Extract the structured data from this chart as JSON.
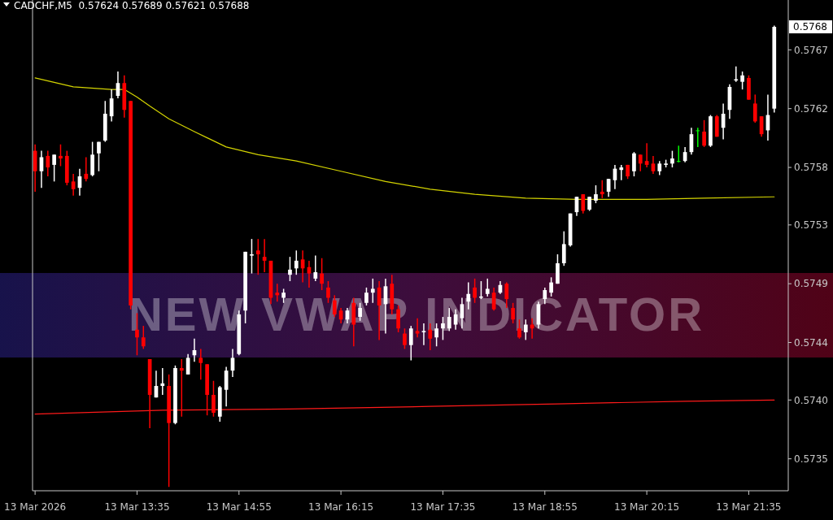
{
  "chart_data": {
    "type": "candlestick",
    "title": "CADCHF,M5  0.57624 0.57689 0.57621 0.57688",
    "x": [
      "2026-03-13T12:15",
      "2026-03-13T12:20",
      "2026-03-13T12:25",
      "2026-03-13T12:30",
      "2026-03-13T12:35",
      "2026-03-13T12:40",
      "2026-03-13T12:45",
      "2026-03-13T12:50",
      "2026-03-13T12:55",
      "2026-03-13T13:00",
      "2026-03-13T13:05",
      "2026-03-13T13:10",
      "2026-03-13T13:15",
      "2026-03-13T13:20",
      "2026-03-13T13:25",
      "2026-03-13T13:30",
      "2026-03-13T13:35",
      "2026-03-13T13:40",
      "2026-03-13T13:45",
      "2026-03-13T13:50",
      "2026-03-13T13:55",
      "2026-03-13T14:00",
      "2026-03-13T14:05",
      "2026-03-13T14:10",
      "2026-03-13T14:15",
      "2026-03-13T14:20",
      "2026-03-13T14:25",
      "2026-03-13T14:30",
      "2026-03-13T14:35",
      "2026-03-13T14:40",
      "2026-03-13T14:45",
      "2026-03-13T14:50",
      "2026-03-13T14:55",
      "2026-03-13T15:00",
      "2026-03-13T15:05",
      "2026-03-13T15:10",
      "2026-03-13T15:15",
      "2026-03-13T15:20",
      "2026-03-13T15:25",
      "2026-03-13T15:30",
      "2026-03-13T15:35",
      "2026-03-13T15:40",
      "2026-03-13T15:45",
      "2026-03-13T15:50",
      "2026-03-13T15:55",
      "2026-03-13T16:00",
      "2026-03-13T16:05",
      "2026-03-13T16:10",
      "2026-03-13T16:15",
      "2026-03-13T16:20",
      "2026-03-13T16:25",
      "2026-03-13T16:30",
      "2026-03-13T16:35",
      "2026-03-13T16:40",
      "2026-03-13T16:45",
      "2026-03-13T16:50",
      "2026-03-13T16:55",
      "2026-03-13T17:00",
      "2026-03-13T17:05",
      "2026-03-13T17:10",
      "2026-03-13T17:15",
      "2026-03-13T17:20",
      "2026-03-13T17:25",
      "2026-03-13T17:30",
      "2026-03-13T17:35",
      "2026-03-13T17:40",
      "2026-03-13T17:45",
      "2026-03-13T17:50",
      "2026-03-13T17:55",
      "2026-03-13T18:00",
      "2026-03-13T18:05",
      "2026-03-13T18:10",
      "2026-03-13T18:15",
      "2026-03-13T18:20",
      "2026-03-13T18:25",
      "2026-03-13T18:30",
      "2026-03-13T18:35",
      "2026-03-13T18:40",
      "2026-03-13T18:45",
      "2026-03-13T18:50",
      "2026-03-13T18:55",
      "2026-03-13T19:00",
      "2026-03-13T19:05",
      "2026-03-13T19:10",
      "2026-03-13T19:15",
      "2026-03-13T19:20",
      "2026-03-13T19:25",
      "2026-03-13T19:30",
      "2026-03-13T19:35",
      "2026-03-13T19:40",
      "2026-03-13T19:45",
      "2026-03-13T19:50",
      "2026-03-13T19:55",
      "2026-03-13T20:00",
      "2026-03-13T20:05",
      "2026-03-13T20:10",
      "2026-03-13T20:15",
      "2026-03-13T20:20",
      "2026-03-13T20:25",
      "2026-03-13T20:30",
      "2026-03-13T20:35",
      "2026-03-13T20:40",
      "2026-03-13T20:45",
      "2026-03-13T20:50",
      "2026-03-13T20:55",
      "2026-03-13T21:00",
      "2026-03-13T21:05",
      "2026-03-13T21:10",
      "2026-03-13T21:15",
      "2026-03-13T21:20",
      "2026-03-13T21:25",
      "2026-03-13T21:30",
      "2026-03-13T21:35",
      "2026-03-13T21:40",
      "2026-03-13T21:45",
      "2026-03-13T21:50",
      "2026-03-13T21:55"
    ],
    "ohlc": [
      [
        0.57591,
        0.57596,
        0.57559,
        0.57575
      ],
      [
        0.57575,
        0.57591,
        0.57562,
        0.57586
      ],
      [
        0.57587,
        0.57591,
        0.57571,
        0.57578
      ],
      [
        0.5758,
        0.57588,
        0.57567,
        0.57588
      ],
      [
        0.57587,
        0.57596,
        0.57579,
        0.57585
      ],
      [
        0.57587,
        0.57591,
        0.57564,
        0.57566
      ],
      [
        0.57567,
        0.57573,
        0.57556,
        0.57561
      ],
      [
        0.57562,
        0.57577,
        0.57556,
        0.57571
      ],
      [
        0.57573,
        0.57586,
        0.57567,
        0.57569
      ],
      [
        0.57572,
        0.57598,
        0.57571,
        0.57588
      ],
      [
        0.57589,
        0.57598,
        0.57575,
        0.57598
      ],
      [
        0.57599,
        0.5763,
        0.57598,
        0.5762
      ],
      [
        0.57618,
        0.57639,
        0.57614,
        0.57632
      ],
      [
        0.57634,
        0.57653,
        0.57632,
        0.57644
      ],
      [
        0.57644,
        0.5765,
        0.57617,
        0.57623
      ],
      [
        0.5763,
        0.5763,
        0.57467,
        0.5747
      ],
      [
        0.57451,
        0.57464,
        0.57431,
        0.57445
      ],
      [
        0.57445,
        0.57454,
        0.57436,
        0.57438
      ],
      [
        0.57428,
        0.57428,
        0.57374,
        0.574
      ],
      [
        0.57398,
        0.57419,
        0.57398,
        0.57407
      ],
      [
        0.57407,
        0.57421,
        0.574,
        0.57409
      ],
      [
        0.57407,
        0.57416,
        0.57328,
        0.57378
      ],
      [
        0.57378,
        0.57423,
        0.57377,
        0.57421
      ],
      [
        0.57421,
        0.57428,
        0.57383,
        0.57419
      ],
      [
        0.57416,
        0.57432,
        0.57416,
        0.57429
      ],
      [
        0.57431,
        0.57444,
        0.57426,
        0.57435
      ],
      [
        0.57429,
        0.57436,
        0.57412,
        0.57425
      ],
      [
        0.57424,
        0.57424,
        0.57384,
        0.574
      ],
      [
        0.574,
        0.57411,
        0.57383,
        0.57386
      ],
      [
        0.57383,
        0.57407,
        0.57379,
        0.57406
      ],
      [
        0.57404,
        0.57422,
        0.57391,
        0.57419
      ],
      [
        0.57419,
        0.57436,
        0.57414,
        0.57429
      ],
      [
        0.57432,
        0.57466,
        0.57431,
        0.57463
      ],
      [
        0.57466,
        0.57512,
        0.57456,
        0.57512
      ],
      [
        0.57509,
        0.57522,
        0.57495,
        0.5751
      ],
      [
        0.57513,
        0.57522,
        0.57494,
        0.5751
      ],
      [
        0.57508,
        0.57522,
        0.57496,
        0.57505
      ],
      [
        0.57505,
        0.57505,
        0.57471,
        0.57476
      ],
      [
        0.5748,
        0.57487,
        0.57473,
        0.57478
      ],
      [
        0.57476,
        0.57483,
        0.57472,
        0.5748
      ],
      [
        0.57494,
        0.57508,
        0.57489,
        0.57498
      ],
      [
        0.57499,
        0.57513,
        0.57494,
        0.57505
      ],
      [
        0.57506,
        0.57513,
        0.57488,
        0.57499
      ],
      [
        0.575,
        0.57505,
        0.57484,
        0.57495
      ],
      [
        0.57491,
        0.57509,
        0.57489,
        0.57496
      ],
      [
        0.57495,
        0.57507,
        0.57482,
        0.57487
      ],
      [
        0.57484,
        0.57489,
        0.57472,
        0.57476
      ],
      [
        0.57474,
        0.57478,
        0.57461,
        0.57463
      ],
      [
        0.57466,
        0.57468,
        0.57456,
        0.57459
      ],
      [
        0.57459,
        0.57468,
        0.57456,
        0.57466
      ],
      [
        0.57472,
        0.57476,
        0.57438,
        0.57455
      ],
      [
        0.57461,
        0.57472,
        0.57458,
        0.57468
      ],
      [
        0.57472,
        0.57484,
        0.5747,
        0.5748
      ],
      [
        0.5748,
        0.57491,
        0.57472,
        0.57483
      ],
      [
        0.57484,
        0.57489,
        0.57443,
        0.5747
      ],
      [
        0.57471,
        0.57491,
        0.57448,
        0.57485
      ],
      [
        0.57487,
        0.57494,
        0.57463,
        0.57467
      ],
      [
        0.57467,
        0.5747,
        0.57449,
        0.57452
      ],
      [
        0.57448,
        0.57452,
        0.57436,
        0.57439
      ],
      [
        0.57439,
        0.57454,
        0.57427,
        0.57452
      ],
      [
        0.5745,
        0.5746,
        0.57445,
        0.57448
      ],
      [
        0.57449,
        0.57456,
        0.57439,
        0.5745
      ],
      [
        0.57451,
        0.57456,
        0.57435,
        0.57444
      ],
      [
        0.57445,
        0.57456,
        0.57438,
        0.57452
      ],
      [
        0.57452,
        0.57461,
        0.57443,
        0.57456
      ],
      [
        0.57452,
        0.57468,
        0.5745,
        0.57461
      ],
      [
        0.57455,
        0.57467,
        0.57451,
        0.57463
      ],
      [
        0.5746,
        0.57476,
        0.57452,
        0.57471
      ],
      [
        0.57473,
        0.57488,
        0.57467,
        0.57479
      ],
      [
        0.57484,
        0.57491,
        0.57472,
        0.57476
      ],
      [
        0.57476,
        0.57489,
        0.57475,
        0.57477
      ],
      [
        0.57479,
        0.57491,
        0.57477,
        0.57483
      ],
      [
        0.5748,
        0.57484,
        0.57466,
        0.57467
      ],
      [
        0.5748,
        0.57489,
        0.57479,
        0.57486
      ],
      [
        0.57487,
        0.57488,
        0.57468,
        0.57475
      ],
      [
        0.57468,
        0.57472,
        0.57456,
        0.57459
      ],
      [
        0.57452,
        0.57459,
        0.57444,
        0.57445
      ],
      [
        0.57449,
        0.57459,
        0.57443,
        0.57455
      ],
      [
        0.57455,
        0.5746,
        0.57444,
        0.57452
      ],
      [
        0.57455,
        0.57473,
        0.57452,
        0.57471
      ],
      [
        0.57475,
        0.57484,
        0.57471,
        0.57482
      ],
      [
        0.5748,
        0.57492,
        0.57477,
        0.57488
      ],
      [
        0.57487,
        0.5751,
        0.57487,
        0.57503
      ],
      [
        0.57503,
        0.57528,
        0.57501,
        0.57518
      ],
      [
        0.57517,
        0.57542,
        0.57516,
        0.57542
      ],
      [
        0.57543,
        0.57555,
        0.5754,
        0.57555
      ],
      [
        0.57557,
        0.57557,
        0.57542,
        0.57544
      ],
      [
        0.57545,
        0.57555,
        0.57544,
        0.57555
      ],
      [
        0.57552,
        0.57564,
        0.5755,
        0.57557
      ],
      [
        0.57559,
        0.57568,
        0.57554,
        0.57557
      ],
      [
        0.57559,
        0.57569,
        0.57555,
        0.57569
      ],
      [
        0.57568,
        0.5758,
        0.57561,
        0.57577
      ],
      [
        0.57576,
        0.5758,
        0.57568,
        0.57578
      ],
      [
        0.5758,
        0.5758,
        0.57569,
        0.57571
      ],
      [
        0.57575,
        0.5759,
        0.57571,
        0.57589
      ],
      [
        0.57588,
        0.57588,
        0.57575,
        0.57581
      ],
      [
        0.57583,
        0.57597,
        0.57578,
        0.5758
      ],
      [
        0.57581,
        0.57587,
        0.57573,
        0.57575
      ],
      [
        0.57575,
        0.57583,
        0.57572,
        0.57581
      ],
      [
        0.5758,
        0.57584,
        0.57578,
        0.57581
      ],
      [
        0.57581,
        0.57591,
        0.57578,
        0.57585
      ],
      [
        0.57583,
        0.57595,
        0.57582,
        0.57583
      ],
      [
        0.57583,
        0.57594,
        0.57582,
        0.5759
      ],
      [
        0.5759,
        0.57609,
        0.57588,
        0.57604
      ],
      [
        0.57607,
        0.57609,
        0.57594,
        0.57607
      ],
      [
        0.57606,
        0.57615,
        0.57594,
        0.57595
      ],
      [
        0.57595,
        0.57619,
        0.57594,
        0.57618
      ],
      [
        0.57618,
        0.57619,
        0.57602,
        0.57602
      ],
      [
        0.57609,
        0.57628,
        0.576,
        0.5762
      ],
      [
        0.57623,
        0.57643,
        0.57616,
        0.57641
      ],
      [
        0.57646,
        0.57657,
        0.57645,
        0.57647
      ],
      [
        0.57645,
        0.57653,
        0.57639,
        0.5765
      ],
      [
        0.57648,
        0.5765,
        0.57631,
        0.57631
      ],
      [
        0.57628,
        0.57635,
        0.57613,
        0.57614
      ],
      [
        0.57618,
        0.57618,
        0.57602,
        0.57604
      ],
      [
        0.57607,
        0.57635,
        0.57599,
        0.57619
      ],
      [
        0.57624,
        0.57689,
        0.57621,
        0.57688
      ]
    ],
    "colors": [
      "#ff0000",
      "#ffffff",
      "#ff0000",
      "#ffffff",
      "#ff0000",
      "#ff0000",
      "#ff0000",
      "#ffffff",
      "#ff0000",
      "#ffffff",
      "#ffffff",
      "#ffffff",
      "#ffffff",
      "#ffffff",
      "#ff0000",
      "#ff0000",
      "#ff0000",
      "#ff0000",
      "#ff0000",
      "#ffffff",
      "#ffffff",
      "#ff0000",
      "#ffffff",
      "#ff0000",
      "#ffffff",
      "#ffffff",
      "#ff0000",
      "#ff0000",
      "#ff0000",
      "#ffffff",
      "#ffffff",
      "#ffffff",
      "#ffffff",
      "#ffffff",
      "#ffffff",
      "#ff0000",
      "#ff0000",
      "#ff0000",
      "#ff0000",
      "#ffffff",
      "#ffffff",
      "#ffffff",
      "#ff0000",
      "#ff0000",
      "#ffffff",
      "#ff0000",
      "#ff0000",
      "#ff0000",
      "#ff0000",
      "#ffffff",
      "#ff0000",
      "#ffffff",
      "#ffffff",
      "#ffffff",
      "#ff0000",
      "#ffffff",
      "#ff0000",
      "#ff0000",
      "#ff0000",
      "#ffffff",
      "#ff0000",
      "#ffffff",
      "#ff0000",
      "#ffffff",
      "#ffffff",
      "#ffffff",
      "#ffffff",
      "#ffffff",
      "#ffffff",
      "#ff0000",
      "#ffffff",
      "#ffffff",
      "#ff0000",
      "#ffffff",
      "#ff0000",
      "#ff0000",
      "#ff0000",
      "#ffffff",
      "#ff0000",
      "#ffffff",
      "#ffffff",
      "#ffffff",
      "#ffffff",
      "#ffffff",
      "#ffffff",
      "#ffffff",
      "#ff0000",
      "#ffffff",
      "#ffffff",
      "#ff0000",
      "#ffffff",
      "#ffffff",
      "#ffffff",
      "#ff0000",
      "#ffffff",
      "#ff0000",
      "#ff0000",
      "#ff0000",
      "#ffffff",
      "#ffffff",
      "#ffffff",
      "#00ff00",
      "#ffffff",
      "#ffffff",
      "#00ff00",
      "#ff0000",
      "#ffffff",
      "#ff0000",
      "#ffffff",
      "#ffffff",
      "#ffffff",
      "#ffffff",
      "#ff0000",
      "#ff0000",
      "#ff0000",
      "#ffffff",
      "#ffffff"
    ],
    "series": [
      {
        "type": "line",
        "color": "#d4d400",
        "x": [
          "2026-03-13T12:15",
          "2026-03-13T12:45",
          "2026-03-13T13:15",
          "2026-03-13T13:25",
          "2026-03-13T13:35",
          "2026-03-13T13:45",
          "2026-03-13T14:00",
          "2026-03-13T14:20",
          "2026-03-13T14:45",
          "2026-03-13T15:10",
          "2026-03-13T15:40",
          "2026-03-13T16:15",
          "2026-03-13T16:50",
          "2026-03-13T17:25",
          "2026-03-13T18:00",
          "2026-03-13T18:40",
          "2026-03-13T19:20",
          "2026-03-13T20:15",
          "2026-03-13T21:00",
          "2026-03-13T21:55"
        ],
        "values": [
          0.57648,
          0.57641,
          0.57639,
          0.57639,
          0.57633,
          0.57626,
          0.57616,
          0.57606,
          0.57594,
          0.57588,
          0.57583,
          0.57575,
          0.57567,
          0.57561,
          0.57557,
          0.57554,
          0.57553,
          0.57553,
          0.57554,
          0.57555
        ]
      },
      {
        "type": "line",
        "color": "#ff1a1a",
        "x": [
          "2026-03-13T12:15",
          "2026-03-13T13:55",
          "2026-03-13T15:35",
          "2026-03-13T17:25",
          "2026-03-13T19:05",
          "2026-03-13T20:45",
          "2026-03-13T21:55"
        ],
        "values": [
          0.57385,
          0.57388,
          0.57389,
          0.57391,
          0.57393,
          0.57395,
          0.57396
        ]
      }
    ],
    "xlim": [
      "2026-03-13T12:13",
      "2026-03-13T22:06"
    ],
    "xticks": [
      {
        "value": "2026-03-13T12:15",
        "label": "13 Mar 2026"
      },
      {
        "value": "2026-03-13T13:35",
        "label": "13 Mar 13:35"
      },
      {
        "value": "2026-03-13T14:55",
        "label": "13 Mar 14:55"
      },
      {
        "value": "2026-03-13T16:15",
        "label": "13 Mar 16:15"
      },
      {
        "value": "2026-03-13T17:35",
        "label": "13 Mar 17:35"
      },
      {
        "value": "2026-03-13T18:55",
        "label": "13 Mar 18:55"
      },
      {
        "value": "2026-03-13T20:15",
        "label": "13 Mar 20:15"
      },
      {
        "value": "2026-03-13T21:35",
        "label": "13 Mar 21:35"
      }
    ],
    "ylim": [
      0.57325,
      0.57709
    ],
    "yticks": [
      {
        "value": 0.5735,
        "label": "0.5735"
      },
      {
        "value": 0.57396,
        "label": "0.5740"
      },
      {
        "value": 0.57441,
        "label": "0.5744"
      },
      {
        "value": 0.57487,
        "label": "0.5749"
      },
      {
        "value": 0.57533,
        "label": "0.5753"
      },
      {
        "value": 0.57578,
        "label": "0.5758"
      },
      {
        "value": 0.57624,
        "label": "0.5762"
      },
      {
        "value": 0.5767,
        "label": "0.5767"
      }
    ],
    "annotations": [
      "NEW VWAP INDICATOR",
      "0.5768"
    ]
  }
}
